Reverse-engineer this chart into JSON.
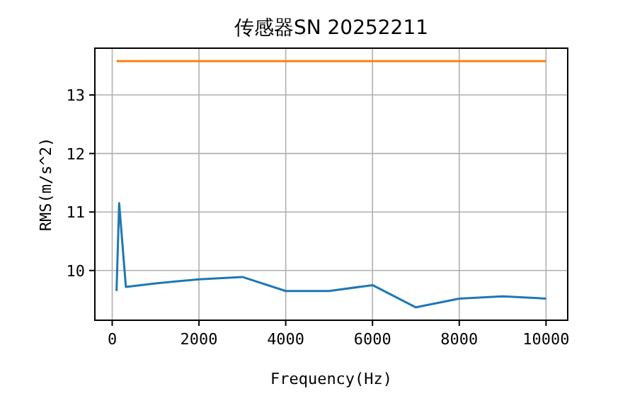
{
  "chart_data": {
    "type": "line",
    "title": "传感器SN 20252211",
    "xlabel": "Frequency(Hz)",
    "ylabel": "RMS(m/s^2)",
    "xlim": [
      -400,
      10500
    ],
    "ylim": [
      9.15,
      13.8
    ],
    "xticks": [
      0,
      2000,
      4000,
      6000,
      8000,
      10000
    ],
    "yticks": [
      10,
      11,
      12,
      13
    ],
    "grid": true,
    "series": [
      {
        "color": "#1f77b4",
        "x": [
          100,
          160,
          315,
          1000,
          2000,
          3000,
          4000,
          5000,
          6000,
          7000,
          8000,
          9000,
          10000
        ],
        "values": [
          9.65,
          11.15,
          9.72,
          9.78,
          9.85,
          9.89,
          9.65,
          9.65,
          9.75,
          9.37,
          9.52,
          9.56,
          9.52
        ]
      },
      {
        "color": "#ff7f0e",
        "x": [
          100,
          10000
        ],
        "values": [
          13.58,
          13.58
        ]
      }
    ]
  }
}
